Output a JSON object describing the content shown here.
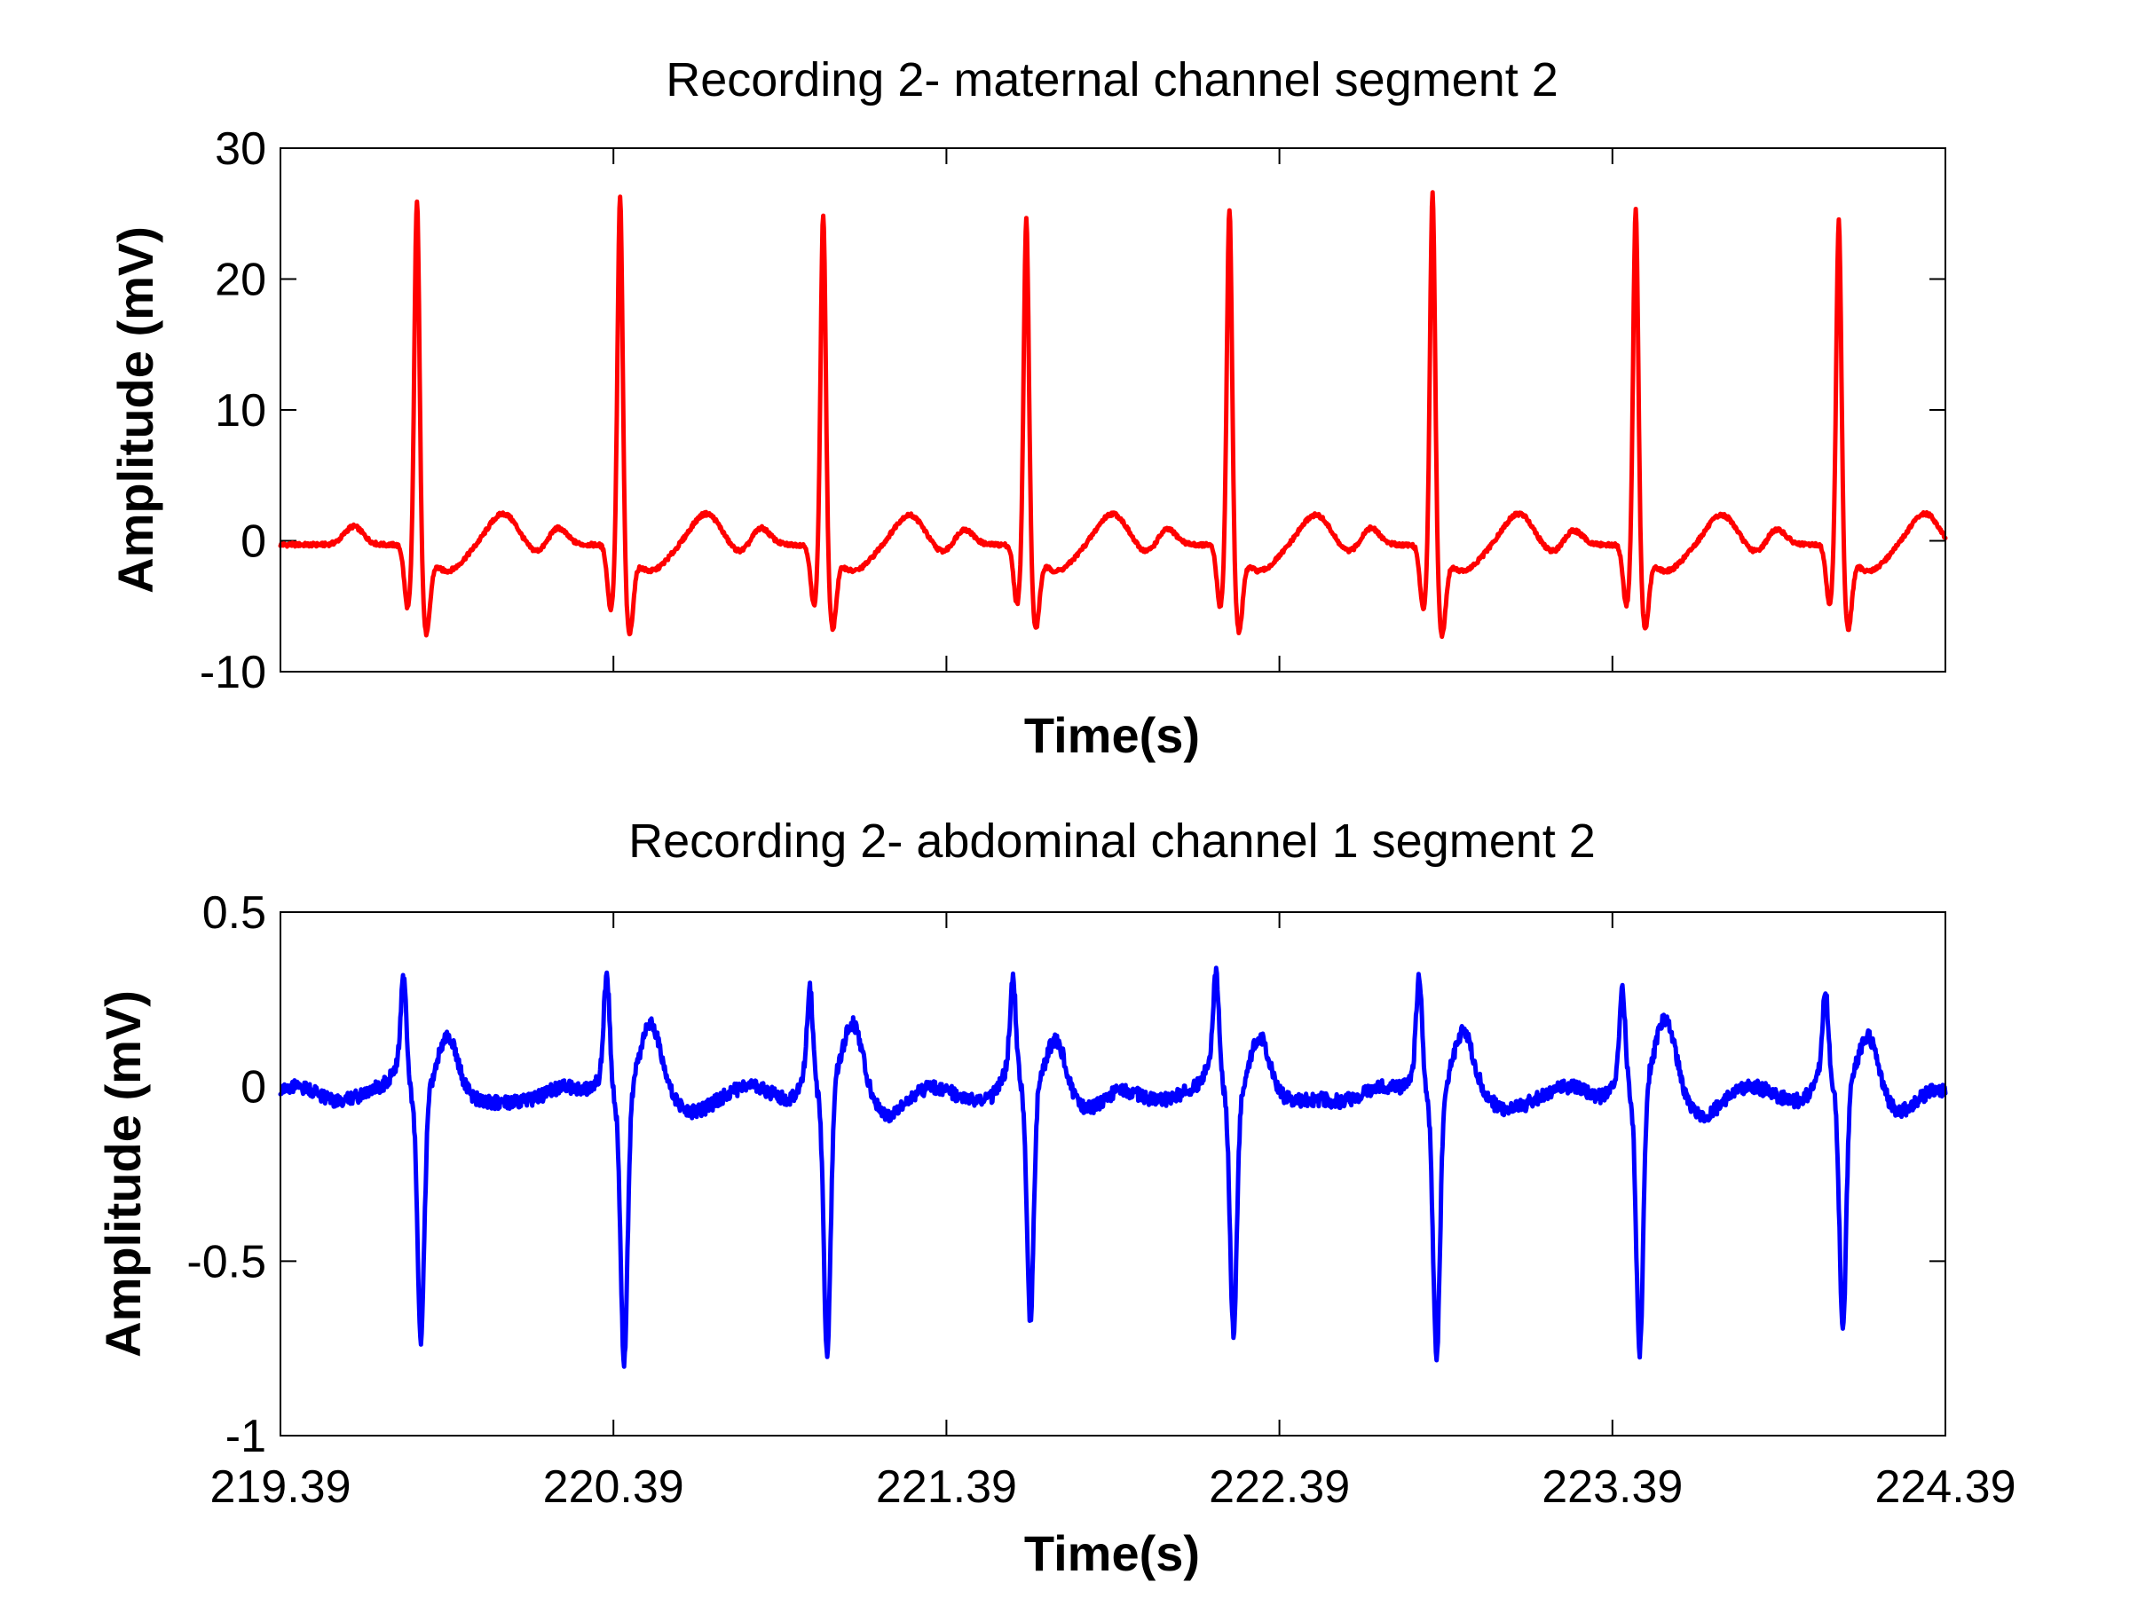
{
  "chart_data": [
    {
      "type": "line",
      "title": "Recording 2- maternal channel segment 2",
      "xlabel": "Time(s)",
      "ylabel": "Amplitude (mV)",
      "xlim": [
        219.39,
        224.39
      ],
      "ylim": [
        -10,
        30
      ],
      "yticks": [
        "-10",
        "0",
        "10",
        "20",
        "30"
      ],
      "xticks": [],
      "grid": false,
      "legend": "none",
      "series": [
        {
          "color": "#ff0000",
          "beat_times": [
            219.8,
            220.41,
            221.02,
            221.63,
            222.24,
            222.85,
            223.46,
            224.07
          ],
          "r_peaks": [
            26.7,
            26.9,
            25.6,
            25.3,
            26.1,
            27.2,
            26.0,
            25.1
          ],
          "s_troughs": [
            -6.2,
            -6.2,
            -5.8,
            -5.8,
            -6.0,
            -6.3,
            -5.8,
            -5.8
          ],
          "q_troughs": [
            -5.0,
            -5.1,
            -4.8,
            -4.7,
            -4.9,
            -5.1,
            -4.8,
            -4.7
          ],
          "t_waves": [
            2.1,
            2.1,
            2.0,
            2.1,
            2.0,
            2.1,
            2.0,
            2.1
          ],
          "p_waves": [
            1.1,
            1.2,
            1.2,
            1.1,
            1.1,
            1.2,
            1.0,
            1.1
          ],
          "baseline": -0.3,
          "noise": 0.15
        }
      ]
    },
    {
      "type": "line",
      "title": "Recording 2- abdominal channel 1 segment 2",
      "xlabel": "Time(s)",
      "ylabel": "Amplitude (mV)",
      "xlim": [
        219.39,
        224.39
      ],
      "ylim": [
        -1,
        0.5
      ],
      "yticks": [
        "-1",
        "-0.5",
        "0",
        "0.5"
      ],
      "xticks": [
        "219.39",
        "220.39",
        "221.39",
        "222.39",
        "223.39",
        "224.39"
      ],
      "grid": false,
      "legend": "none",
      "series": [
        {
          "color": "#0000ff",
          "beat_times": [
            219.8,
            220.41,
            221.02,
            221.63,
            222.24,
            222.85,
            223.46,
            224.07
          ],
          "r_peaks": [
            0.32,
            0.36,
            0.31,
            0.31,
            0.33,
            0.35,
            0.31,
            0.28
          ],
          "s_troughs": [
            -0.71,
            -0.79,
            -0.79,
            -0.69,
            -0.7,
            -0.76,
            -0.78,
            -0.72
          ],
          "t_waves": [
            0.16,
            0.17,
            0.17,
            0.15,
            0.16,
            0.15,
            0.18,
            0.15
          ],
          "baseline": -0.02,
          "noise": 0.02
        }
      ]
    }
  ]
}
